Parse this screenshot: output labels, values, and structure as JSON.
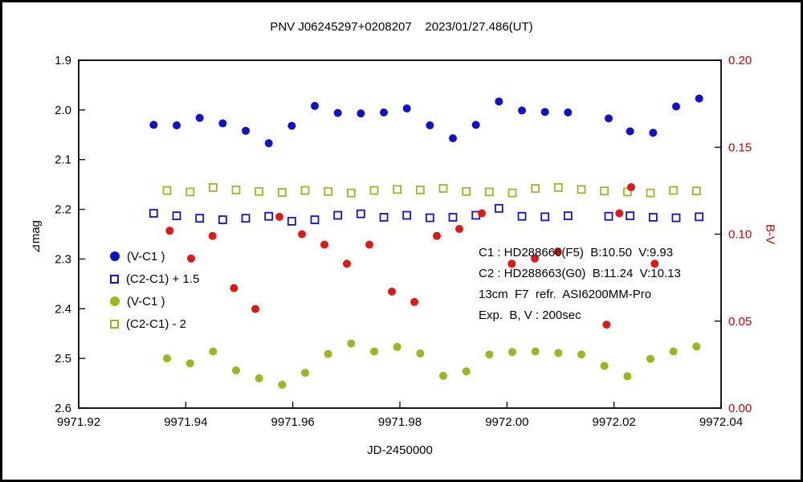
{
  "title": "PNV J06245297+0208207    2023/01/27.486(UT)",
  "axes": {
    "x_label": "JD-2450000",
    "y_left_label": "⊿mag",
    "y_right_label": "B-V"
  },
  "legend": [
    {
      "label": "(V-C1 )",
      "marker": "circle-filled",
      "color": "#1212cc"
    },
    {
      "label": "(C2-C1) + 1.5",
      "marker": "square-open",
      "color": "#1212cc"
    },
    {
      "label": "(V-C1 )",
      "marker": "circle-filled",
      "color": "#a0b41e"
    },
    {
      "label": "(C2-C1) - 2",
      "marker": "square-open",
      "color": "#a0b41e"
    }
  ],
  "annotations": [
    "C1 : HD288666(F5)  B:10.50  V:9.93",
    "C2 : HD288663(G0)  B:11.24  V:10.13",
    "13cm  F7  refr.  ASI6200MM-Pro",
    "Exp.  B, V : 200sec"
  ],
  "colors": {
    "blue": "#1212cc",
    "green": "#a0b41e",
    "red": "#e01818",
    "right_axis_text": "#c80000",
    "frame": "#000000"
  },
  "chart_data": {
    "type": "scatter",
    "title": "PNV J06245297+0208207    2023/01/27.486(UT)",
    "xlabel": "JD-2450000",
    "ylabel_left": "⊿mag",
    "ylabel_right": "B-V",
    "grid": false,
    "xlim": [
      9971.92,
      9972.04
    ],
    "y_left_top": 1.9,
    "y_left_bottom": 2.6,
    "y_right_top": 0.2,
    "y_right_bottom": 0.0,
    "x_ticks": [
      9971.92,
      9971.94,
      9971.96,
      9971.98,
      9972.0,
      9972.02,
      9972.04
    ],
    "x_tick_labels": [
      "9971.92",
      "9971.94",
      "9971.96",
      "9971.98",
      "9972.00",
      "9972.02",
      "9972.04"
    ],
    "y_ticks_left": [
      1.9,
      2.0,
      2.1,
      2.2,
      2.3,
      2.4,
      2.5,
      2.6
    ],
    "y_tick_labels_left": [
      "1.9",
      "2.0",
      "2.1",
      "2.2",
      "2.3",
      "2.4",
      "2.5",
      "2.6"
    ],
    "y_ticks_right": [
      0.2,
      0.15,
      0.1,
      0.05,
      0.0
    ],
    "y_tick_labels_right": [
      "0.20",
      "0.15",
      "0.10",
      "0.05",
      "0.00"
    ],
    "legend_position": "inside-left",
    "series": [
      {
        "id": "v-c1-blue",
        "name": "(V-C1 )",
        "axis": "left",
        "marker": "circle",
        "fill": true,
        "color": "#1212cc",
        "x": [
          9971.934,
          9971.9383,
          9971.9426,
          9971.9469,
          9971.9512,
          9971.9555,
          9971.9598,
          9971.9641,
          9971.9684,
          9971.9727,
          9971.977,
          9971.9813,
          9971.9856,
          9971.9899,
          9971.9942,
          9971.9985,
          9972.0028,
          9972.0071,
          9972.0114,
          9972.019,
          9972.023,
          9972.0273,
          9972.0316,
          9972.0359
        ],
        "y": [
          2.03,
          2.031,
          2.016,
          2.027,
          2.042,
          2.067,
          2.032,
          1.992,
          2.006,
          2.007,
          2.005,
          1.997,
          2.031,
          2.057,
          2.03,
          1.983,
          2.001,
          2.004,
          2.005,
          2.017,
          2.043,
          2.046,
          1.993,
          1.977
        ]
      },
      {
        "id": "c2-c1-blue",
        "name": "(C2-C1) + 1.5",
        "axis": "left",
        "marker": "square",
        "fill": false,
        "color": "#1212cc",
        "x": [
          9971.934,
          9971.9383,
          9971.9426,
          9971.9469,
          9971.9512,
          9971.9555,
          9971.9598,
          9971.9641,
          9971.9684,
          9971.9727,
          9971.977,
          9971.9813,
          9971.9856,
          9971.9899,
          9971.9942,
          9971.9985,
          9972.0028,
          9972.0071,
          9972.0114,
          9972.019,
          9972.023,
          9972.0273,
          9972.0316,
          9972.0359
        ],
        "y": [
          2.208,
          2.213,
          2.218,
          2.221,
          2.218,
          2.214,
          2.224,
          2.221,
          2.212,
          2.209,
          2.216,
          2.212,
          2.217,
          2.216,
          2.212,
          2.198,
          2.214,
          2.215,
          2.213,
          2.214,
          2.213,
          2.216,
          2.217,
          2.215
        ]
      },
      {
        "id": "v-c1-green",
        "name": "(V-C1 )",
        "axis": "left",
        "marker": "circle",
        "fill": true,
        "color": "#a0b41e",
        "x": [
          9971.9365,
          9971.9408,
          9971.9451,
          9971.9494,
          9971.9537,
          9971.958,
          9971.9623,
          9971.9666,
          9971.9709,
          9971.9752,
          9971.9795,
          9971.9838,
          9971.9881,
          9971.9924,
          9971.9967,
          9972.001,
          9972.0053,
          9972.0096,
          9972.0139,
          9972.0182,
          9972.0225,
          9972.0268,
          9972.0311,
          9972.0354
        ],
        "y": [
          2.5,
          2.51,
          2.486,
          2.524,
          2.54,
          2.553,
          2.529,
          2.491,
          2.47,
          2.486,
          2.477,
          2.49,
          2.535,
          2.526,
          2.492,
          2.487,
          2.486,
          2.489,
          2.492,
          2.515,
          2.536,
          2.501,
          2.486,
          2.476
        ]
      },
      {
        "id": "c2-c1-green",
        "name": "(C2-C1) - 2",
        "axis": "left",
        "marker": "square",
        "fill": false,
        "color": "#a0b41e",
        "x": [
          9971.9365,
          9971.9408,
          9971.9451,
          9971.9494,
          9971.9537,
          9971.958,
          9971.9623,
          9971.9666,
          9971.9709,
          9971.9752,
          9971.9795,
          9971.9838,
          9971.9881,
          9971.9924,
          9971.9967,
          9972.001,
          9972.0053,
          9972.0096,
          9972.0139,
          9972.0182,
          9972.0225,
          9972.0268,
          9972.0311,
          9972.0354
        ],
        "y": [
          2.162,
          2.165,
          2.156,
          2.161,
          2.164,
          2.166,
          2.162,
          2.164,
          2.167,
          2.162,
          2.16,
          2.161,
          2.158,
          2.164,
          2.165,
          2.167,
          2.158,
          2.156,
          2.16,
          2.163,
          2.165,
          2.167,
          2.162,
          2.163
        ]
      },
      {
        "id": "b-v-red",
        "name": "B-V",
        "axis": "right",
        "marker": "circle",
        "fill": true,
        "color": "#e01818",
        "x": [
          9971.937,
          9971.941,
          9971.945,
          9971.949,
          9971.953,
          9971.9575,
          9971.9617,
          9971.9659,
          9971.9701,
          9971.9743,
          9971.9785,
          9971.9827,
          9971.9869,
          9971.9911,
          9971.9953,
          9972.0009,
          9972.0052,
          9972.0095,
          9972.0186,
          9972.021,
          9972.0232,
          9972.0276
        ],
        "y": [
          0.102,
          0.086,
          0.099,
          0.069,
          0.057,
          0.11,
          0.1,
          0.094,
          0.083,
          0.094,
          0.067,
          0.061,
          0.099,
          0.103,
          0.112,
          0.083,
          0.086,
          0.09,
          0.048,
          0.112,
          0.127,
          0.083
        ]
      }
    ]
  }
}
